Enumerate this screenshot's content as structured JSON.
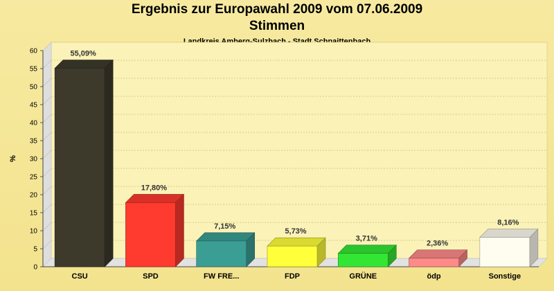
{
  "header": {
    "title": "Ergebnis zur Europawahl 2009 vom 07.06.2009",
    "subtitle": "Stimmen",
    "region": "Landkreis Amberg-Sulzbach - Stadt Schnaittenbach"
  },
  "chart_data": {
    "type": "bar",
    "title": "Ergebnis zur Europawahl 2009 vom 07.06.2009",
    "subtitle": "Stimmen",
    "caption": "Landkreis Amberg-Sulzbach - Stadt Schnaittenbach",
    "ylabel": "%",
    "xlabel": "",
    "ylim": [
      0,
      60
    ],
    "yticks": [
      0,
      5,
      10,
      15,
      20,
      25,
      30,
      35,
      40,
      45,
      50,
      55,
      60
    ],
    "grid": true,
    "categories": [
      "CSU",
      "SPD",
      "FW FRE...",
      "FDP",
      "GRÜNE",
      "ödp",
      "Sonstige"
    ],
    "values": [
      55.09,
      17.8,
      7.15,
      5.73,
      3.71,
      2.36,
      8.16
    ],
    "value_labels": [
      "55,09%",
      "17,80%",
      "7,15%",
      "5,73%",
      "3,71%",
      "2,36%",
      "8,16%"
    ],
    "colors": [
      "#3d3a2c",
      "#ff3a2e",
      "#3a9e94",
      "#ffff3a",
      "#33e633",
      "#ff8a8a",
      "#fffdf0"
    ]
  }
}
